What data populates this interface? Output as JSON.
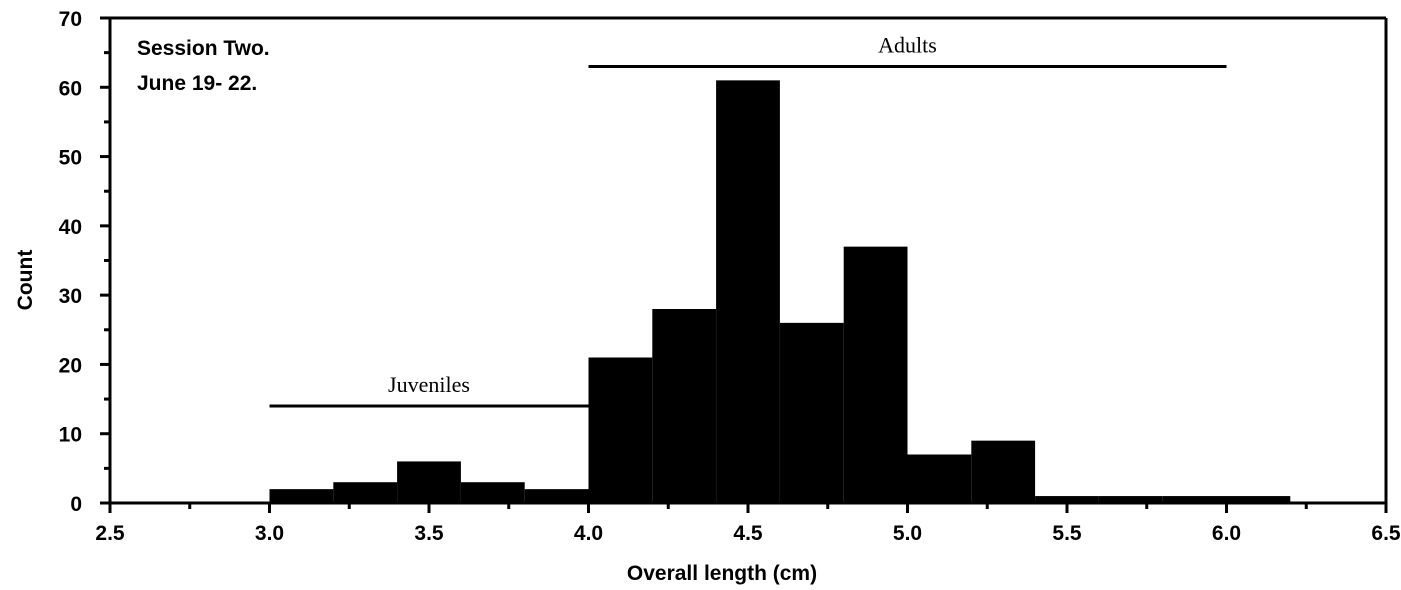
{
  "chart_data": {
    "type": "bar",
    "title_lines": [
      "Session Two.",
      "June 19- 22."
    ],
    "xlabel": "Overall length (cm)",
    "ylabel": "Count",
    "xlim": [
      2.5,
      6.5
    ],
    "ylim": [
      0,
      70
    ],
    "x_ticks": [
      "2.5",
      "3.0",
      "3.5",
      "4.0",
      "4.5",
      "5.0",
      "5.5",
      "6.0",
      "6.5"
    ],
    "y_ticks": [
      "0",
      "10",
      "20",
      "30",
      "40",
      "50",
      "60",
      "70"
    ],
    "grid": false,
    "bins": [
      {
        "x0": 3.0,
        "x1": 3.2,
        "count": 2
      },
      {
        "x0": 3.2,
        "x1": 3.4,
        "count": 3
      },
      {
        "x0": 3.4,
        "x1": 3.6,
        "count": 6
      },
      {
        "x0": 3.6,
        "x1": 3.8,
        "count": 3
      },
      {
        "x0": 3.8,
        "x1": 4.0,
        "count": 2
      },
      {
        "x0": 4.0,
        "x1": 4.2,
        "count": 21
      },
      {
        "x0": 4.2,
        "x1": 4.4,
        "count": 28
      },
      {
        "x0": 4.4,
        "x1": 4.6,
        "count": 61
      },
      {
        "x0": 4.6,
        "x1": 4.8,
        "count": 26
      },
      {
        "x0": 4.8,
        "x1": 5.0,
        "count": 37
      },
      {
        "x0": 5.0,
        "x1": 5.2,
        "count": 7
      },
      {
        "x0": 5.2,
        "x1": 5.4,
        "count": 9
      },
      {
        "x0": 5.4,
        "x1": 5.6,
        "count": 1
      },
      {
        "x0": 5.6,
        "x1": 5.8,
        "count": 1
      },
      {
        "x0": 5.8,
        "x1": 6.0,
        "count": 1
      },
      {
        "x0": 6.0,
        "x1": 6.2,
        "count": 1
      }
    ],
    "annotations": [
      {
        "label": "Juveniles",
        "x_start": 3.0,
        "x_end": 4.0,
        "y": 14
      },
      {
        "label": "Adults",
        "x_start": 4.0,
        "x_end": 6.0,
        "y": 63
      }
    ]
  }
}
